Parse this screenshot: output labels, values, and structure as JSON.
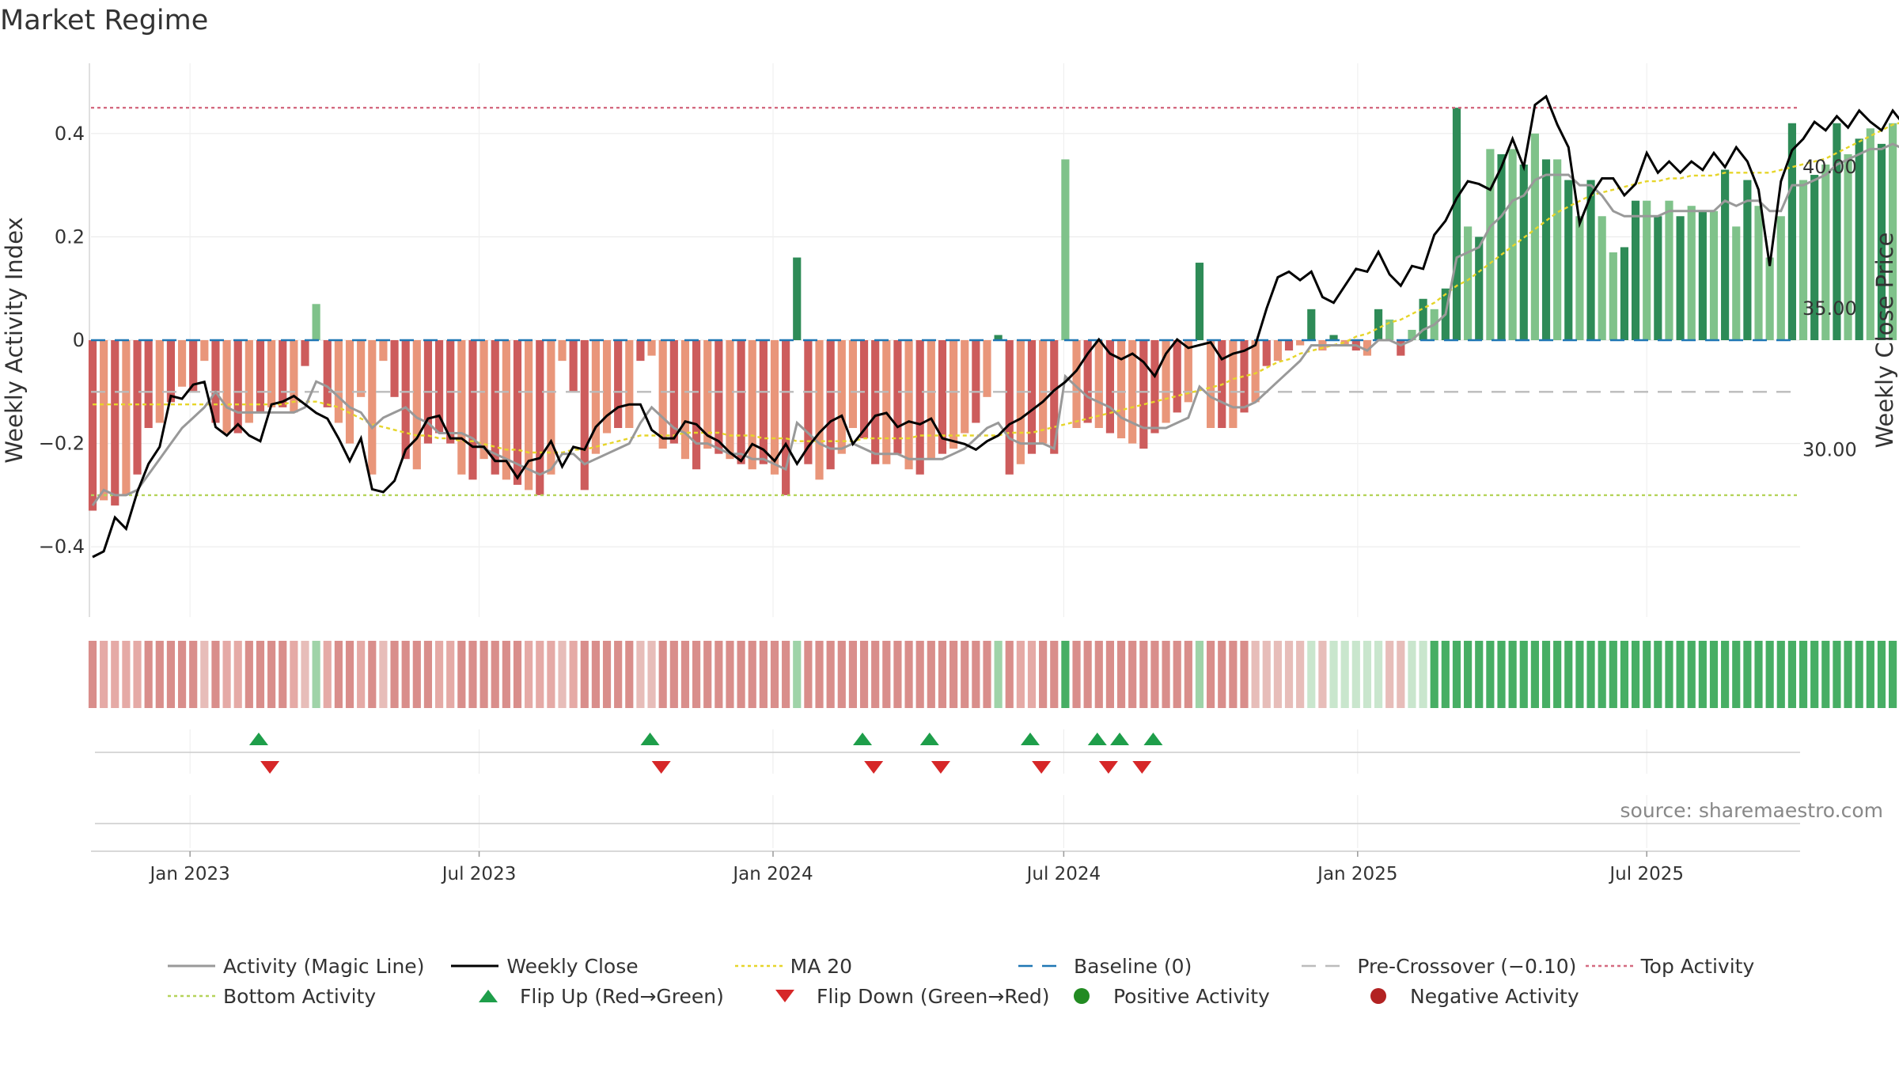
{
  "title": "Market Regime",
  "source": "source: sharemaestro.com",
  "colors": {
    "pos_strong": "#2e8b57",
    "pos_light": "#7fc28a",
    "neg_strong": "#cd5c5c",
    "neg_light": "#e9967a",
    "magic": "#999999",
    "close": "#000000",
    "ma": "#e6d52a",
    "baseline": "#1f77b4",
    "precross": "#bbbbbb",
    "top": "#d46a80",
    "bottom": "#b5d35a",
    "flip_up": "#1e9e4a",
    "flip_down": "#d62728",
    "pos_dot": "#228b22",
    "neg_dot": "#b22222"
  },
  "legend": [
    {
      "label": "Activity (Magic Line)",
      "style": "line",
      "color": "#999999"
    },
    {
      "label": "Weekly Close",
      "style": "line",
      "color": "#000000"
    },
    {
      "label": "MA 20",
      "style": "dotted",
      "color": "#e6d52a"
    },
    {
      "label": "Baseline (0)",
      "style": "dashed",
      "color": "#1f77b4"
    },
    {
      "label": "Pre-Crossover (−0.10)",
      "style": "dashed",
      "color": "#bbbbbb"
    },
    {
      "label": "Top Activity",
      "style": "dotted",
      "color": "#d46a80"
    },
    {
      "label": "Bottom Activity",
      "style": "dotted",
      "color": "#b5d35a"
    },
    {
      "label": "Flip Up (Red→Green)",
      "style": "tri-up",
      "color": "#1e9e4a"
    },
    {
      "label": "Flip Down (Green→Red)",
      "style": "tri-down",
      "color": "#d62728"
    },
    {
      "label": "Positive Activity",
      "style": "dot",
      "color": "#228b22"
    },
    {
      "label": "Negative Activity",
      "style": "dot",
      "color": "#b22222"
    }
  ],
  "chart_data": {
    "type": "bar",
    "ylabel": "Weekly Activity Index",
    "y2label": "Weekly Close Price",
    "ylim": [
      -0.53,
      0.53
    ],
    "yticks": [
      {
        "v": 0.4,
        "label": "0.4"
      },
      {
        "v": 0.2,
        "label": "0.2"
      },
      {
        "v": 0,
        "label": "0"
      },
      {
        "v": -0.2,
        "label": "−0.2"
      },
      {
        "v": -0.4,
        "label": "−0.4"
      }
    ],
    "y2lim": [
      24.8,
      45.8
    ],
    "y2ticks": [
      {
        "v": 40,
        "label": "40.00"
      },
      {
        "v": 35,
        "label": "35.00"
      },
      {
        "v": 30,
        "label": "30.00"
      }
    ],
    "x_range": [
      "2022-10-31",
      "2025-10-05"
    ],
    "xticks": [
      {
        "date": "2023-01-01",
        "label": "Jan 2023"
      },
      {
        "date": "2023-07-01",
        "label": "Jul 2023"
      },
      {
        "date": "2024-01-01",
        "label": "Jan 2024"
      },
      {
        "date": "2024-07-01",
        "label": "Jul 2024"
      },
      {
        "date": "2025-01-01",
        "label": "Jan 2025"
      },
      {
        "date": "2025-07-01",
        "label": "Jul 2025"
      }
    ],
    "start_date": "2022-11-01",
    "baseline": 0,
    "pre_crossover": -0.1,
    "top_activity": 0.45,
    "bottom_activity": -0.3,
    "activity": [
      -0.33,
      -0.31,
      -0.32,
      -0.3,
      -0.26,
      -0.17,
      -0.16,
      -0.12,
      -0.09,
      -0.1,
      -0.04,
      -0.16,
      -0.18,
      -0.18,
      -0.16,
      -0.14,
      -0.13,
      -0.13,
      -0.14,
      -0.05,
      0.07,
      -0.13,
      -0.16,
      -0.2,
      -0.11,
      -0.26,
      -0.04,
      -0.11,
      -0.23,
      -0.25,
      -0.2,
      -0.18,
      -0.2,
      -0.26,
      -0.27,
      -0.23,
      -0.26,
      -0.27,
      -0.28,
      -0.29,
      -0.3,
      -0.26,
      -0.04,
      -0.1,
      -0.29,
      -0.22,
      -0.18,
      -0.17,
      -0.17,
      -0.04,
      -0.03,
      -0.21,
      -0.2,
      -0.23,
      -0.25,
      -0.21,
      -0.22,
      -0.23,
      -0.24,
      -0.25,
      -0.24,
      -0.26,
      -0.3,
      0.16,
      -0.24,
      -0.27,
      -0.25,
      -0.22,
      -0.17,
      -0.19,
      -0.24,
      -0.24,
      -0.22,
      -0.25,
      -0.26,
      -0.23,
      -0.22,
      -0.21,
      -0.18,
      -0.16,
      -0.11,
      0.01,
      -0.26,
      -0.24,
      -0.22,
      -0.2,
      -0.22,
      0.35,
      -0.17,
      -0.16,
      -0.17,
      -0.18,
      -0.19,
      -0.2,
      -0.21,
      -0.18,
      -0.16,
      -0.14,
      -0.12,
      0.15,
      -0.17,
      -0.17,
      -0.17,
      -0.14,
      -0.12,
      -0.05,
      -0.04,
      -0.02,
      -0.01,
      0.06,
      -0.02,
      0.01,
      -0.01,
      -0.02,
      -0.03,
      0.06,
      0.04,
      -0.03,
      0.02,
      0.08,
      0.06,
      0.1,
      0.45,
      0.22,
      0.2,
      0.37,
      0.36,
      0.37,
      0.34,
      0.4,
      0.35,
      0.35,
      0.31,
      0.24,
      0.31,
      0.24,
      0.17,
      0.18,
      0.27,
      0.27,
      0.24,
      0.27,
      0.24,
      0.26,
      0.25,
      0.25,
      0.33,
      0.22,
      0.31,
      0.26,
      0.16,
      0.24,
      0.42,
      0.31,
      0.32,
      0.34,
      0.42,
      0.36,
      0.39,
      0.41,
      0.38,
      0.42,
      0.36,
      0.33,
      0.42,
      0.39,
      0.35,
      0.31,
      0.38,
      0.29,
      0.41,
      0.42,
      0.4,
      0.5
    ],
    "magic_line": [
      -0.32,
      -0.29,
      -0.3,
      -0.3,
      -0.29,
      -0.26,
      -0.23,
      -0.2,
      -0.17,
      -0.15,
      -0.13,
      -0.1,
      -0.13,
      -0.14,
      -0.14,
      -0.14,
      -0.14,
      -0.14,
      -0.14,
      -0.13,
      -0.08,
      -0.09,
      -0.11,
      -0.13,
      -0.14,
      -0.17,
      -0.15,
      -0.14,
      -0.13,
      -0.15,
      -0.16,
      -0.18,
      -0.18,
      -0.18,
      -0.19,
      -0.21,
      -0.22,
      -0.23,
      -0.24,
      -0.25,
      -0.26,
      -0.25,
      -0.22,
      -0.22,
      -0.24,
      -0.23,
      -0.22,
      -0.21,
      -0.2,
      -0.16,
      -0.13,
      -0.15,
      -0.17,
      -0.18,
      -0.2,
      -0.2,
      -0.21,
      -0.22,
      -0.22,
      -0.23,
      -0.23,
      -0.24,
      -0.25,
      -0.16,
      -0.18,
      -0.2,
      -0.21,
      -0.21,
      -0.2,
      -0.21,
      -0.22,
      -0.22,
      -0.22,
      -0.23,
      -0.23,
      -0.23,
      -0.23,
      -0.22,
      -0.21,
      -0.19,
      -0.17,
      -0.16,
      -0.19,
      -0.2,
      -0.2,
      -0.2,
      -0.21,
      -0.07,
      -0.09,
      -0.11,
      -0.12,
      -0.13,
      -0.15,
      -0.16,
      -0.17,
      -0.17,
      -0.17,
      -0.16,
      -0.15,
      -0.09,
      -0.11,
      -0.12,
      -0.13,
      -0.13,
      -0.12,
      -0.1,
      -0.08,
      -0.06,
      -0.04,
      -0.01,
      -0.01,
      -0.01,
      -0.01,
      -0.01,
      -0.02,
      0.0,
      0.0,
      -0.01,
      0.0,
      0.02,
      0.03,
      0.05,
      0.16,
      0.17,
      0.18,
      0.22,
      0.24,
      0.27,
      0.28,
      0.31,
      0.32,
      0.32,
      0.32,
      0.3,
      0.3,
      0.28,
      0.25,
      0.24,
      0.24,
      0.24,
      0.24,
      0.25,
      0.25,
      0.25,
      0.25,
      0.25,
      0.27,
      0.26,
      0.27,
      0.27,
      0.25,
      0.25,
      0.3,
      0.3,
      0.31,
      0.32,
      0.34,
      0.35,
      0.36,
      0.37,
      0.37,
      0.38,
      0.37,
      0.36,
      0.37,
      0.37,
      0.36,
      0.35,
      0.36,
      0.34,
      0.35,
      0.37,
      0.38,
      0.41
    ],
    "close": [
      26.2,
      26.4,
      27.6,
      27.2,
      28.5,
      29.5,
      30.1,
      31.9,
      31.8,
      32.3,
      32.4,
      30.8,
      30.5,
      30.9,
      30.5,
      30.3,
      31.6,
      31.7,
      31.9,
      31.6,
      31.3,
      31.1,
      30.4,
      29.6,
      30.4,
      28.6,
      28.5,
      28.9,
      30.0,
      30.4,
      31.1,
      31.2,
      30.4,
      30.4,
      30.1,
      30.1,
      29.6,
      29.6,
      29.0,
      29.6,
      29.7,
      30.3,
      29.4,
      30.1,
      30.0,
      30.8,
      31.2,
      31.5,
      31.6,
      31.6,
      30.7,
      30.4,
      30.4,
      31.0,
      30.9,
      30.5,
      30.3,
      29.9,
      29.6,
      30.2,
      30.0,
      29.6,
      30.2,
      29.5,
      30.1,
      30.6,
      31.0,
      31.2,
      30.2,
      30.7,
      31.2,
      31.3,
      30.8,
      31.0,
      30.9,
      31.1,
      30.4,
      30.3,
      30.2,
      30.0,
      30.3,
      30.5,
      30.9,
      31.1,
      31.4,
      31.7,
      32.1,
      32.4,
      32.8,
      33.4,
      33.9,
      33.4,
      33.2,
      33.4,
      33.1,
      32.6,
      33.4,
      33.9,
      33.6,
      33.7,
      33.8,
      33.2,
      33.4,
      33.5,
      33.7,
      35.0,
      36.1,
      36.3,
      36.0,
      36.3,
      35.4,
      35.2,
      35.8,
      36.4,
      36.3,
      37.0,
      36.2,
      35.8,
      36.5,
      36.4,
      37.6,
      38.1,
      38.9,
      39.5,
      39.4,
      39.2,
      40.0,
      41.0,
      40.0,
      42.2,
      42.5,
      41.5,
      40.7,
      38.0,
      39.0,
      39.6,
      39.6,
      39.0,
      39.4,
      40.5,
      39.8,
      40.2,
      39.8,
      40.2,
      39.9,
      40.5,
      40.0,
      40.7,
      40.2,
      39.2,
      36.5,
      39.5,
      40.6,
      41.0,
      41.6,
      41.3,
      41.8,
      41.4,
      42.0,
      41.6,
      41.3,
      42.0,
      41.5,
      40.9,
      42.0,
      42.2,
      42.0,
      42.7,
      43.0,
      42.6,
      43.7,
      44.1
    ],
    "ma20": [
      31.6,
      31.6,
      31.6,
      31.6,
      31.6,
      31.6,
      31.6,
      31.6,
      31.6,
      31.6,
      31.6,
      31.6,
      31.6,
      31.6,
      31.6,
      31.6,
      31.6,
      31.6,
      31.7,
      31.7,
      31.7,
      31.6,
      31.5,
      31.3,
      31.1,
      30.9,
      30.8,
      30.7,
      30.6,
      30.5,
      30.5,
      30.4,
      30.4,
      30.3,
      30.3,
      30.2,
      30.1,
      30.0,
      30.0,
      29.9,
      29.9,
      29.9,
      29.9,
      30.0,
      30.0,
      30.1,
      30.2,
      30.3,
      30.4,
      30.5,
      30.5,
      30.5,
      30.5,
      30.6,
      30.6,
      30.6,
      30.6,
      30.5,
      30.5,
      30.5,
      30.4,
      30.4,
      30.4,
      30.3,
      30.3,
      30.3,
      30.3,
      30.3,
      30.3,
      30.4,
      30.4,
      30.4,
      30.4,
      30.4,
      30.5,
      30.5,
      30.5,
      30.5,
      30.5,
      30.5,
      30.5,
      30.5,
      30.6,
      30.6,
      30.6,
      30.7,
      30.8,
      30.9,
      31.0,
      31.1,
      31.2,
      31.3,
      31.4,
      31.5,
      31.6,
      31.7,
      31.8,
      31.9,
      32.0,
      32.1,
      32.2,
      32.3,
      32.5,
      32.6,
      32.7,
      32.9,
      33.1,
      33.2,
      33.4,
      33.5,
      33.6,
      33.7,
      33.8,
      34.0,
      34.1,
      34.3,
      34.5,
      34.6,
      34.8,
      35.0,
      35.2,
      35.5,
      35.8,
      36.0,
      36.3,
      36.6,
      36.9,
      37.2,
      37.5,
      37.8,
      38.1,
      38.4,
      38.6,
      38.8,
      39.0,
      39.1,
      39.2,
      39.3,
      39.4,
      39.5,
      39.5,
      39.6,
      39.6,
      39.7,
      39.7,
      39.7,
      39.8,
      39.8,
      39.8,
      39.8,
      39.8,
      39.9,
      40.0,
      40.1,
      40.2,
      40.3,
      40.5,
      40.7,
      40.9,
      41.1,
      41.3,
      41.5,
      41.6,
      41.7,
      41.8,
      41.9,
      42.0,
      42.1,
      42.2,
      42.3,
      42.5,
      42.6,
      42.8,
      43.0
    ],
    "strip_categories": [
      1,
      2,
      2,
      2,
      2,
      1,
      1,
      1,
      1,
      1,
      0,
      1,
      2,
      2,
      1,
      1,
      1,
      1,
      2,
      0,
      4,
      2,
      1,
      1,
      2,
      1,
      0,
      1,
      1,
      1,
      1,
      2,
      2,
      1,
      1,
      1,
      1,
      1,
      1,
      2,
      2,
      2,
      0,
      2,
      1,
      1,
      1,
      1,
      1,
      0,
      0,
      1,
      1,
      1,
      1,
      1,
      1,
      1,
      1,
      1,
      1,
      1,
      1,
      4,
      1,
      1,
      1,
      1,
      1,
      1,
      1,
      1,
      1,
      1,
      1,
      1,
      1,
      1,
      1,
      1,
      1,
      4,
      1,
      2,
      2,
      1,
      1,
      5,
      1,
      1,
      1,
      1,
      1,
      1,
      1,
      1,
      1,
      1,
      1,
      4,
      1,
      1,
      1,
      1,
      0,
      0,
      0,
      0,
      0,
      3,
      0,
      3,
      3,
      3,
      3,
      3,
      0,
      0,
      3,
      3,
      5,
      5,
      5,
      5,
      5,
      5,
      5,
      5,
      5,
      5,
      5,
      5,
      5,
      5,
      5,
      5,
      5,
      5,
      5,
      5,
      5,
      5,
      5,
      5,
      5,
      5,
      5,
      5,
      5,
      5,
      5,
      5,
      5,
      5,
      5,
      5,
      5,
      5,
      5,
      5,
      5,
      5,
      5,
      5,
      5,
      5,
      5,
      5,
      5,
      5,
      5,
      5,
      5,
      5,
      5,
      5
    ],
    "flip_up": [
      "2023-02-13",
      "2023-10-16",
      "2024-02-26",
      "2024-04-08",
      "2024-06-10",
      "2024-07-22",
      "2024-08-05",
      "2024-08-26"
    ],
    "flip_down": [
      "2023-02-20",
      "2023-10-23",
      "2024-03-04",
      "2024-04-15",
      "2024-06-17",
      "2024-07-29",
      "2024-08-19"
    ]
  }
}
